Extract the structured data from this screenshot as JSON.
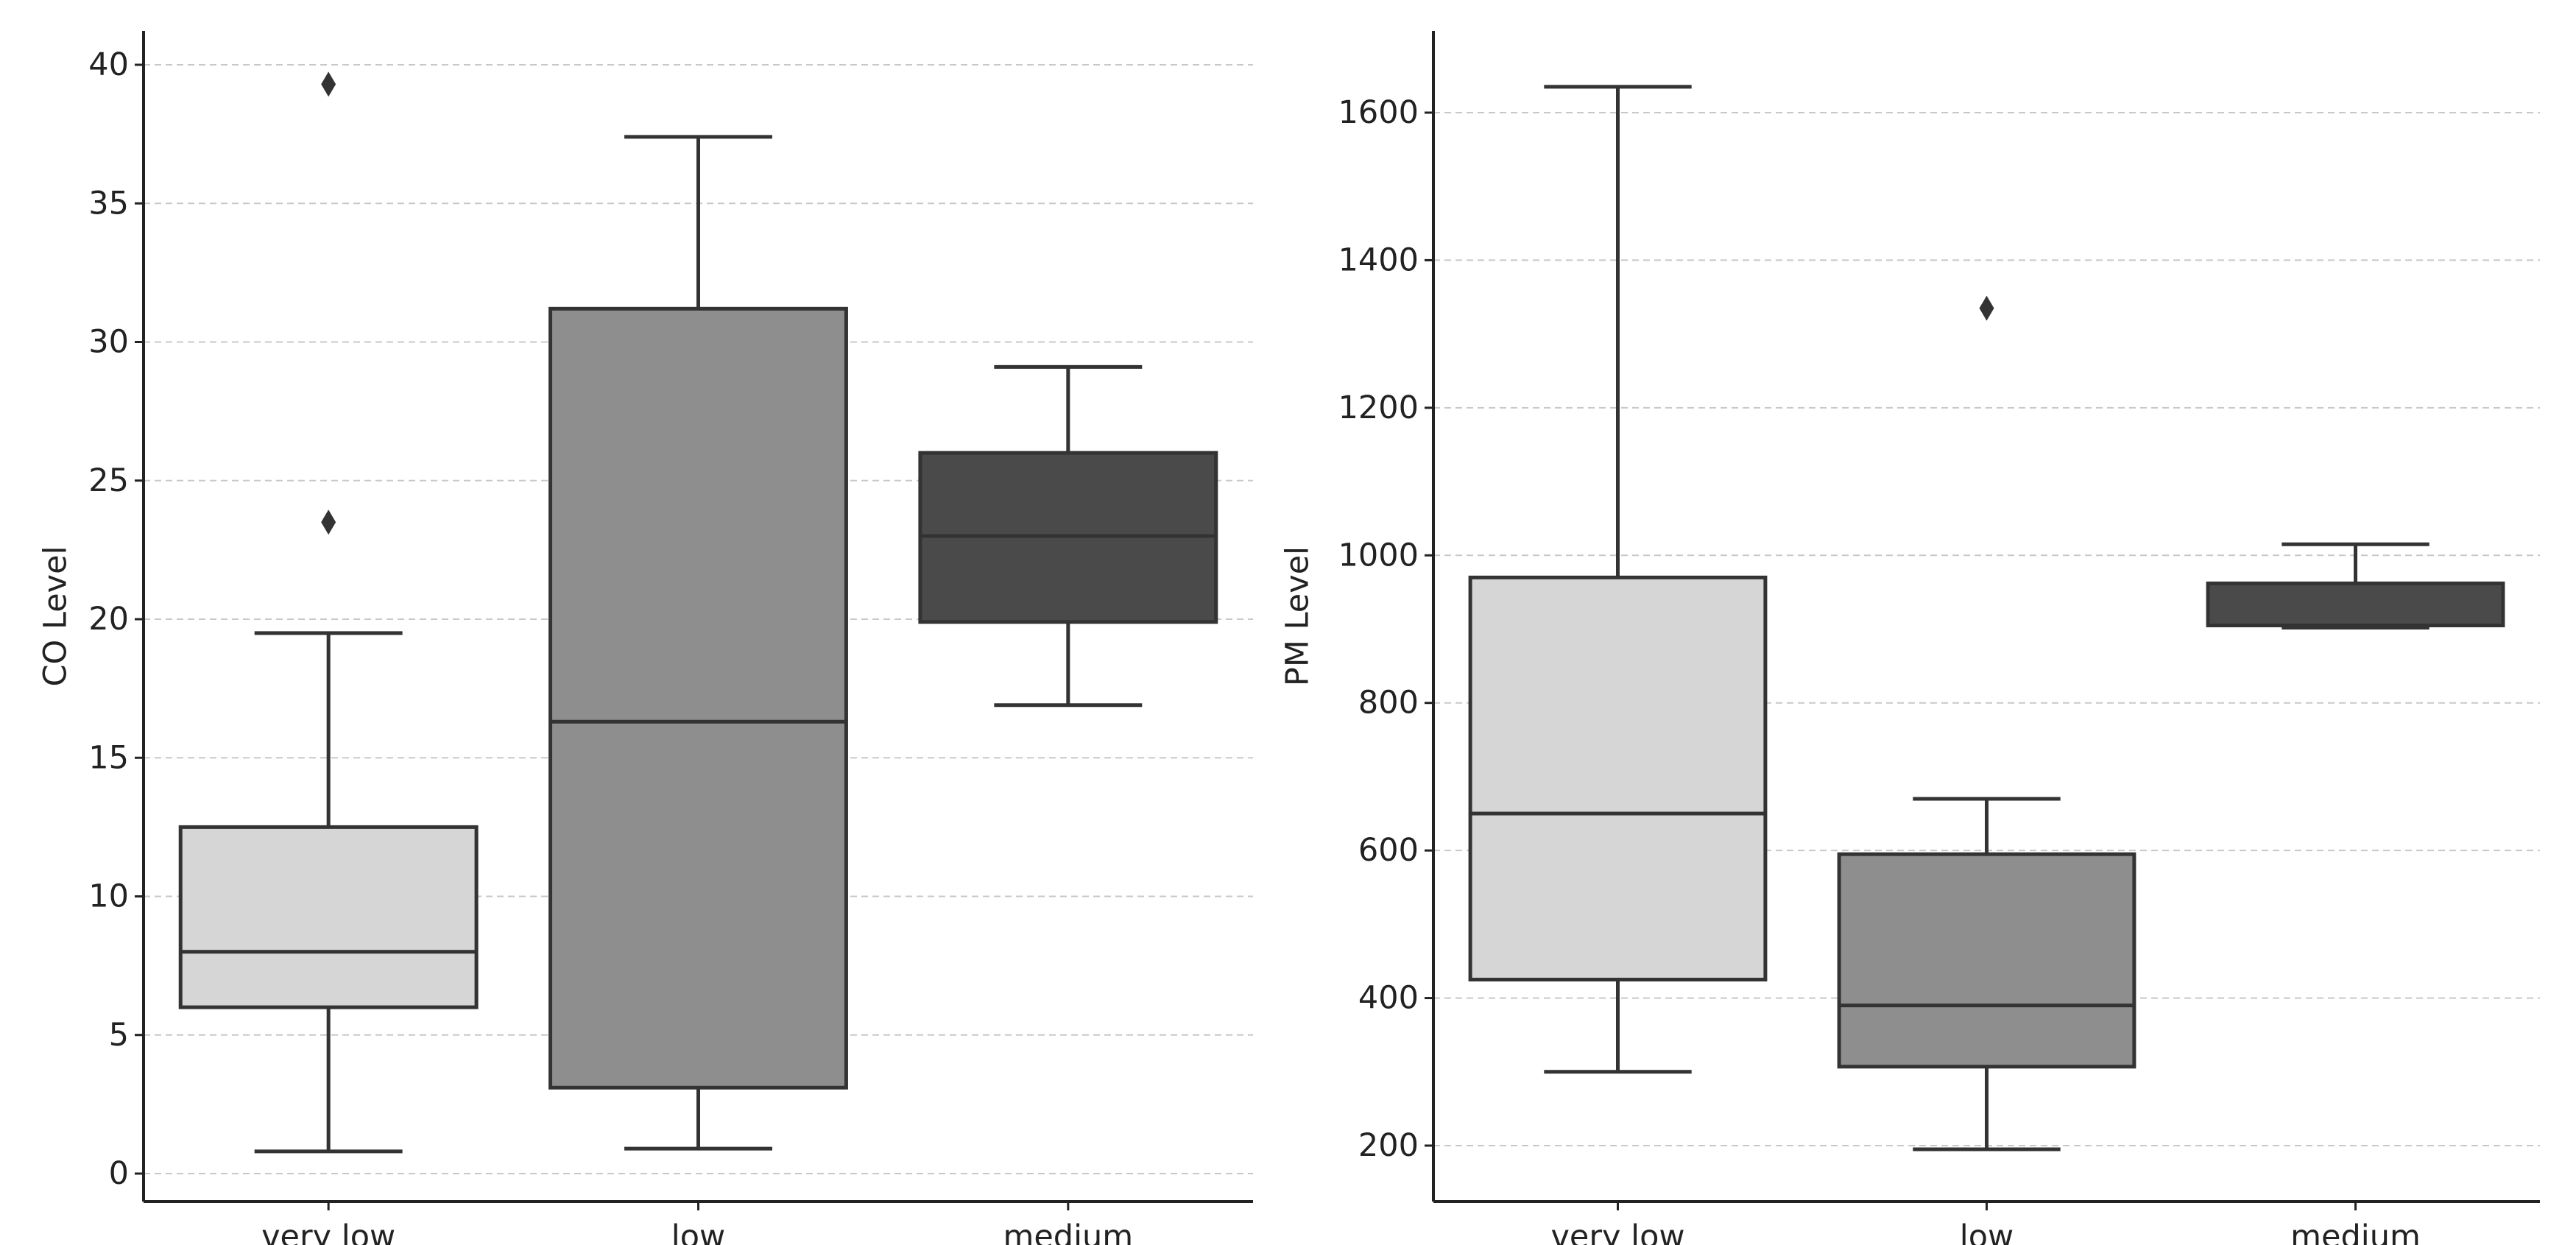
{
  "chart_data": [
    {
      "type": "box",
      "title": "",
      "xlabel": "",
      "ylabel": "CO Level",
      "categories": [
        "very low",
        "low",
        "medium"
      ],
      "ylim": [
        -1,
        41
      ],
      "yticks": [
        0,
        5,
        10,
        15,
        20,
        25,
        30,
        35,
        40
      ],
      "grid": "y-dashed",
      "boxes": [
        {
          "category": "very low",
          "whisker_low": 0.8,
          "q1": 6.0,
          "median": 8.0,
          "q3": 12.5,
          "whisker_high": 19.5,
          "outliers": [
            23.5,
            39.3
          ],
          "color": "#d6d6d6"
        },
        {
          "category": "low",
          "whisker_low": 0.9,
          "q1": 3.1,
          "median": 16.3,
          "q3": 31.2,
          "whisker_high": 37.4,
          "outliers": [],
          "color": "#8e8e8e"
        },
        {
          "category": "medium",
          "whisker_low": 16.9,
          "q1": 19.9,
          "median": 23.0,
          "q3": 26.0,
          "whisker_high": 29.1,
          "outliers": [],
          "color": "#4a4a4a"
        }
      ]
    },
    {
      "type": "box",
      "title": "",
      "xlabel": "",
      "ylabel": "PM Level",
      "categories": [
        "very low",
        "low",
        "medium"
      ],
      "ylim": [
        125,
        1710
      ],
      "yticks": [
        200,
        400,
        600,
        800,
        1000,
        1200,
        1400,
        1600
      ],
      "grid": "y-dashed",
      "boxes": [
        {
          "category": "very low",
          "whisker_low": 300,
          "q1": 425,
          "median": 650,
          "q3": 970,
          "whisker_high": 1635,
          "outliers": [],
          "color": "#d6d6d6"
        },
        {
          "category": "low",
          "whisker_low": 195,
          "q1": 307,
          "median": 390,
          "q3": 595,
          "whisker_high": 670,
          "outliers": [
            1335
          ],
          "color": "#8e8e8e"
        },
        {
          "category": "medium",
          "whisker_low": 902,
          "q1": 905,
          "median": 905,
          "q3": 962,
          "whisker_high": 1015,
          "outliers": [],
          "color": "#4a4a4a"
        }
      ]
    }
  ]
}
